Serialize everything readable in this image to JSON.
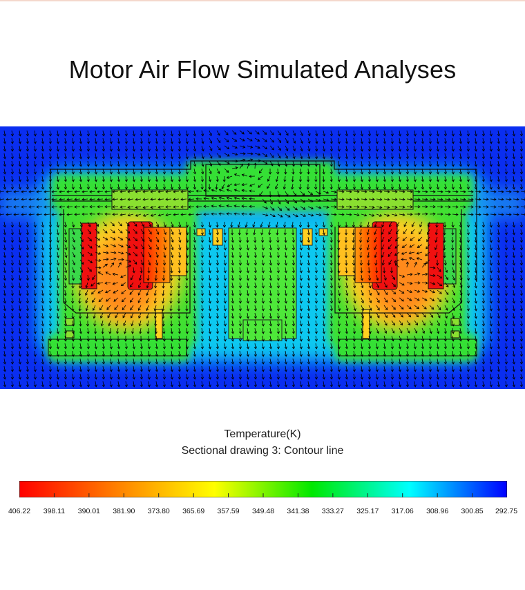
{
  "title": "Motor Air Flow Simulated Analyses",
  "legend": {
    "quantity_label": "Temperature(K)",
    "caption": "Sectional drawing 3: Contour line",
    "ticks": [
      "406.22",
      "398.11",
      "390.01",
      "381.90",
      "373.80",
      "365.69",
      "357.59",
      "349.48",
      "341.38",
      "333.27",
      "325.17",
      "317.06",
      "308.96",
      "300.85",
      "292.75"
    ],
    "colormap": [
      "#ff0000",
      "#ff8000",
      "#ffff00",
      "#00e800",
      "#00ffff",
      "#0000ff"
    ]
  },
  "colors": {
    "cold_air": "#0a2ef0",
    "warm_air": "#10c8f0",
    "housing": "#33e033",
    "hot_zone": "#ff8a1a",
    "winding": "#f01010"
  }
}
